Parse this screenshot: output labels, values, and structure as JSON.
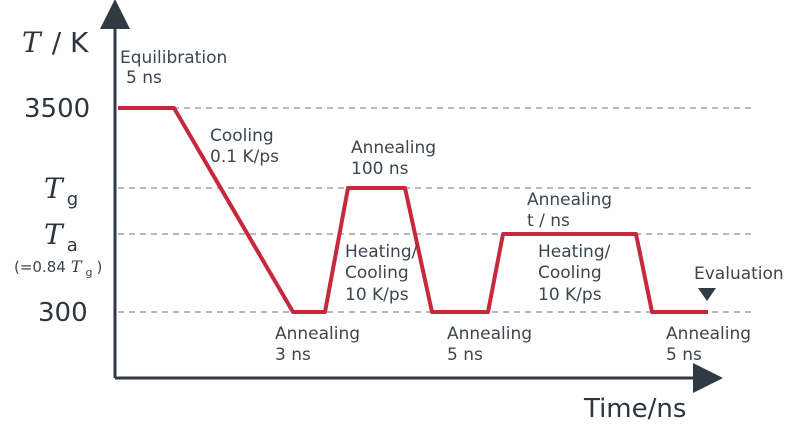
{
  "axes": {
    "y_symbol": "T",
    "y_unit": "/ K",
    "x_label": "Time/ns"
  },
  "y_ticks": {
    "t3500": "3500",
    "tg_symbol": "T",
    "tg_sub": "g",
    "ta_symbol": "T",
    "ta_sub": "a",
    "ta_note_pre": "(=0.84",
    "ta_note_sym": "T",
    "ta_note_sub": "g",
    "ta_note_post": ")",
    "t300": "300"
  },
  "annotations": {
    "equil_1": "Equilibration",
    "equil_2": "5 ns",
    "cooling_1": "Cooling",
    "cooling_2": "0.1 K/ps",
    "anneal100_1": "Annealing",
    "anneal100_2": "100 ns",
    "heat1_1": "Heating/",
    "heat1_2": "Cooling",
    "heat1_3": "10 K/ps",
    "anneal3_1": "Annealing",
    "anneal3_2": "3 ns",
    "anneal5a_1": "Annealing",
    "anneal5a_2": "5 ns",
    "annealt_1": "Annealing",
    "annealt_2": "t / ns",
    "heat2_1": "Heating/",
    "heat2_2": "Cooling",
    "heat2_3": "10 K/ps",
    "anneal5b_1": "Annealing",
    "anneal5b_2": "5 ns",
    "evaluation": "Evaluation"
  },
  "colors": {
    "profile": "#c8283c",
    "axis": "#2f3a45",
    "dashed": "#9aa4ad",
    "marker": "#2f3a45"
  }
}
